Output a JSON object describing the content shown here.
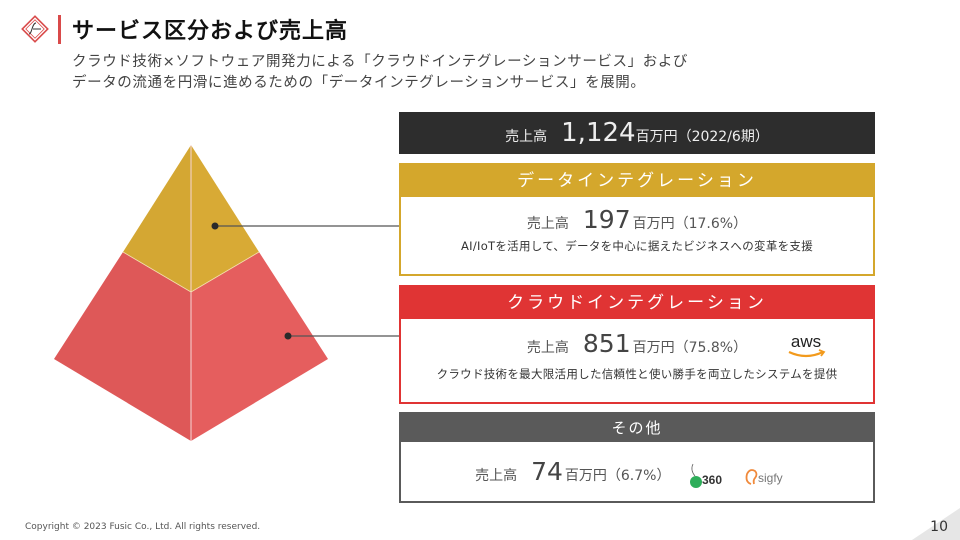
{
  "header": {
    "title": "サービス区分および売上高",
    "subtitle_line1": "クラウド技術×ソフトウェア開発力による「クラウドインテグレーションサービス」および",
    "subtitle_line2": "データの流通を円滑に進めるための「データインテグレーションサービス」を展開。"
  },
  "total": {
    "label": "売上高",
    "value": "1,124",
    "unit": "百万円（2022/6期）"
  },
  "segments": [
    {
      "name": "データインテグレーション",
      "sales_label": "売上高",
      "value": "197",
      "unit": "百万円（17.6%）",
      "description": "AI/IoTを活用して、データを中心に据えたビジネスへの変革を支援",
      "color": "#d4a72c"
    },
    {
      "name": "クラウドインテグレーション",
      "sales_label": "売上高",
      "value": "851",
      "unit": "百万円（75.8%）",
      "description": "クラウド技術を最大限活用した信頼性と使い勝手を両立したシステムを提供",
      "logo_text": "aws",
      "color": "#e03434"
    },
    {
      "name": "その他",
      "sales_label": "売上高",
      "value": "74",
      "unit": "百万円（6.7%）",
      "logo1_text": "360",
      "logo2_text": "sigfy",
      "color": "#5a5a5a"
    }
  ],
  "pyramid": {
    "top_color": "#d6a934",
    "bottom_color": "#e15959"
  },
  "footer": {
    "copyright": "Copyright © 2023 Fusic Co., Ltd. All rights reserved.",
    "page_number": "10"
  }
}
